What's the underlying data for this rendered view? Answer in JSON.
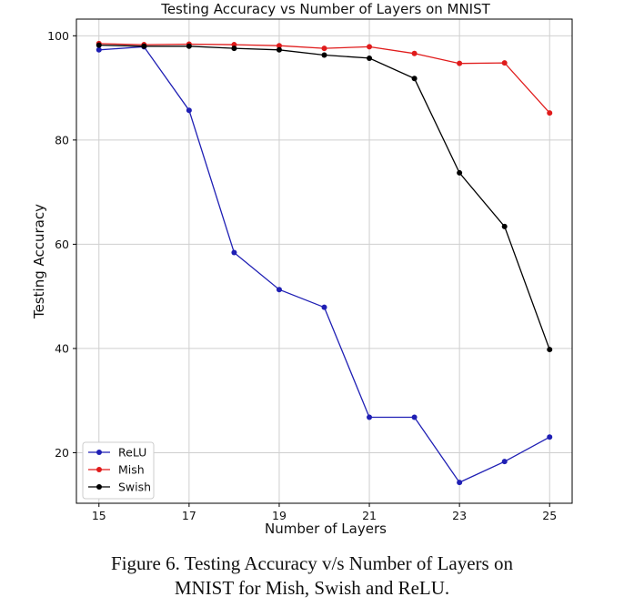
{
  "chart_data": {
    "type": "line",
    "title": "Testing Accuracy vs Number of Layers on MNIST",
    "xlabel": "Number of Layers",
    "ylabel": "Testing Accuracy",
    "x": [
      15,
      16,
      17,
      18,
      19,
      20,
      21,
      22,
      23,
      24,
      25
    ],
    "xticks": [
      "15",
      "17",
      "19",
      "21",
      "23",
      "25"
    ],
    "yticks": [
      "20",
      "40",
      "60",
      "80",
      "100"
    ],
    "xlim": [
      14.5,
      25.5
    ],
    "ylim": [
      10.3,
      103.2
    ],
    "grid": true,
    "legend_position": "bottom-left",
    "series": [
      {
        "name": "ReLU",
        "color": "#1f1fb4",
        "values": [
          97.3,
          97.9,
          85.7,
          58.4,
          51.3,
          47.9,
          26.8,
          26.8,
          14.3,
          18.3,
          23.0
        ]
      },
      {
        "name": "Mish",
        "color": "#e01b1b",
        "values": [
          98.5,
          98.3,
          98.4,
          98.3,
          98.1,
          97.6,
          97.9,
          96.6,
          94.7,
          94.8,
          85.2
        ]
      },
      {
        "name": "Swish",
        "color": "#000000",
        "values": [
          98.2,
          98.0,
          98.0,
          97.6,
          97.3,
          96.3,
          95.7,
          91.8,
          73.7,
          63.4,
          39.8
        ]
      }
    ]
  },
  "caption": {
    "line1": "Figure 6. Testing Accuracy v/s Number of Layers on",
    "line2": "MNIST for Mish, Swish and ReLU."
  }
}
